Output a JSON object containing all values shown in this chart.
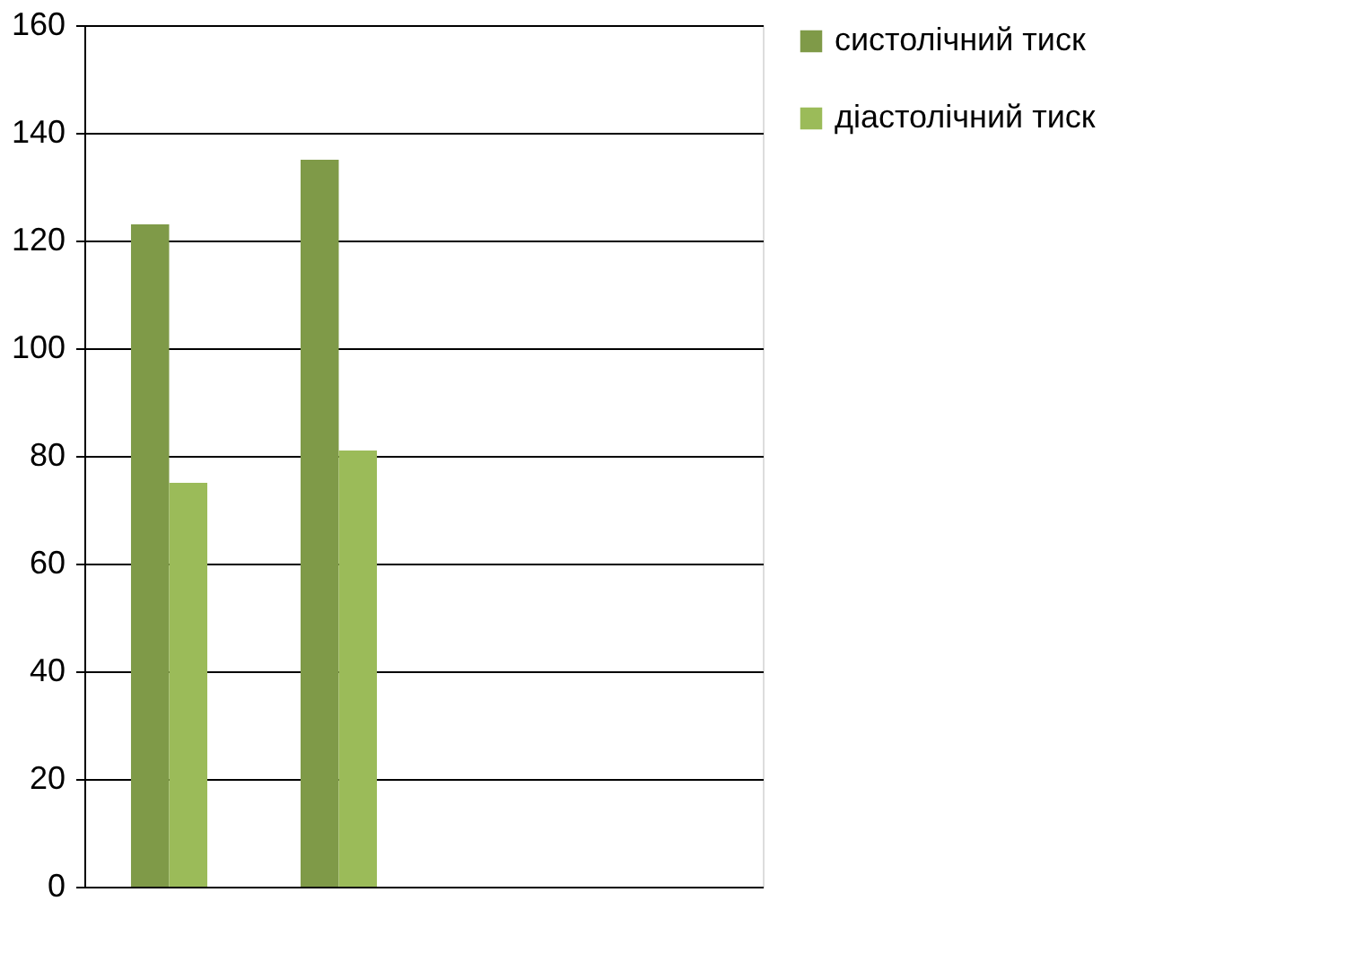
{
  "chart_data": {
    "type": "bar",
    "categories": [
      null,
      null,
      null,
      null
    ],
    "series": [
      {
        "name": "систолічний тиск",
        "color": "#7f9a48",
        "values": [
          123,
          135,
          null,
          null
        ]
      },
      {
        "name": "діастолічний тиск",
        "color": "#9bbb59",
        "values": [
          75,
          81,
          null,
          null
        ]
      }
    ],
    "ylim": [
      0,
      160
    ],
    "yticks": [
      0,
      20,
      40,
      60,
      80,
      100,
      120,
      140,
      160
    ],
    "grid": "y",
    "legend": "right"
  }
}
